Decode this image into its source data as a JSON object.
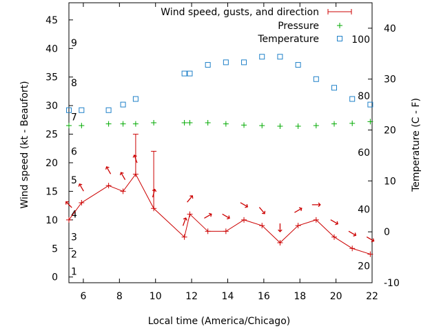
{
  "chart_data": {
    "type": "line",
    "xlabel": "Local time (America/Chicago)",
    "ylabel_left": "Wind speed (kt - Beaufort)",
    "ylabel_right": "Temperature (C - F)",
    "xlim": [
      5.2,
      22
    ],
    "ylim_left": [
      -1,
      48
    ],
    "ylim_right": [
      -10,
      45
    ],
    "x_ticks": [
      6,
      8,
      10,
      12,
      14,
      16,
      18,
      20,
      22
    ],
    "y_ticks_left": [
      0,
      5,
      10,
      15,
      20,
      25,
      30,
      35,
      40,
      45
    ],
    "y_ticks_right": [
      -10,
      0,
      10,
      20,
      30,
      40
    ],
    "beaufort_labels": [
      {
        "label": "1",
        "kt": 1
      },
      {
        "label": "2",
        "kt": 4
      },
      {
        "label": "3",
        "kt": 7
      },
      {
        "label": "4",
        "kt": 11
      },
      {
        "label": "5",
        "kt": 17
      },
      {
        "label": "6",
        "kt": 22
      },
      {
        "label": "7",
        "kt": 28
      },
      {
        "label": "8",
        "kt": 34
      },
      {
        "label": "9",
        "kt": 41
      }
    ],
    "fahrenheit_labels": [
      {
        "label": "20",
        "c": -6.7
      },
      {
        "label": "40",
        "c": 4.4
      },
      {
        "label": "60",
        "c": 15.6
      },
      {
        "label": "80",
        "c": 26.7
      },
      {
        "label": "100",
        "c": 37.8
      }
    ],
    "legend": {
      "placement": "top-right",
      "entries": [
        "Wind speed, gusts, and direction",
        "Pressure",
        "Temperature"
      ]
    },
    "series": [
      {
        "name": "Wind speed, gusts, and direction",
        "color": "#cc0000",
        "x": [
          5.2,
          5.9,
          7.4,
          8.2,
          8.9,
          9.9,
          11.6,
          11.9,
          12.9,
          13.9,
          14.9,
          15.9,
          16.9,
          17.9,
          18.9,
          19.9,
          20.9,
          21.9
        ],
        "values": [
          10,
          13,
          16,
          15,
          18,
          12,
          7,
          11,
          8,
          8,
          10,
          9,
          6,
          9,
          10,
          7,
          5,
          4
        ],
        "gusts": [
          null,
          null,
          null,
          null,
          25,
          22,
          null,
          null,
          null,
          null,
          null,
          null,
          null,
          null,
          null,
          null,
          null,
          null
        ],
        "direction_deg": [
          135,
          150,
          150,
          150,
          160,
          195,
          200,
          220,
          240,
          300,
          300,
          320,
          0,
          240,
          270,
          300,
          300,
          300
        ]
      },
      {
        "name": "Pressure",
        "color": "#00aa00",
        "x": [
          5.2,
          5.9,
          7.4,
          8.2,
          8.9,
          9.9,
          11.6,
          11.9,
          12.9,
          13.9,
          14.9,
          15.9,
          16.9,
          17.9,
          18.9,
          19.9,
          20.9,
          21.9
        ],
        "values": [
          26.5,
          26.5,
          26.8,
          26.8,
          26.8,
          27.0,
          27.0,
          27.0,
          27.0,
          26.8,
          26.6,
          26.5,
          26.4,
          26.4,
          26.5,
          26.8,
          26.9,
          27.2
        ]
      },
      {
        "name": "Temperature",
        "color": "#1e80c8",
        "x": [
          5.2,
          5.9,
          7.4,
          8.2,
          8.9,
          11.6,
          11.9,
          12.9,
          13.9,
          14.9,
          15.9,
          16.9,
          17.9,
          18.9,
          19.9,
          20.9,
          21.9
        ],
        "values": [
          23.9,
          23.9,
          23.9,
          25.0,
          26.1,
          31.1,
          31.1,
          32.8,
          33.3,
          33.3,
          34.4,
          34.4,
          32.8,
          30.0,
          28.3,
          26.1,
          25.0
        ]
      }
    ]
  }
}
